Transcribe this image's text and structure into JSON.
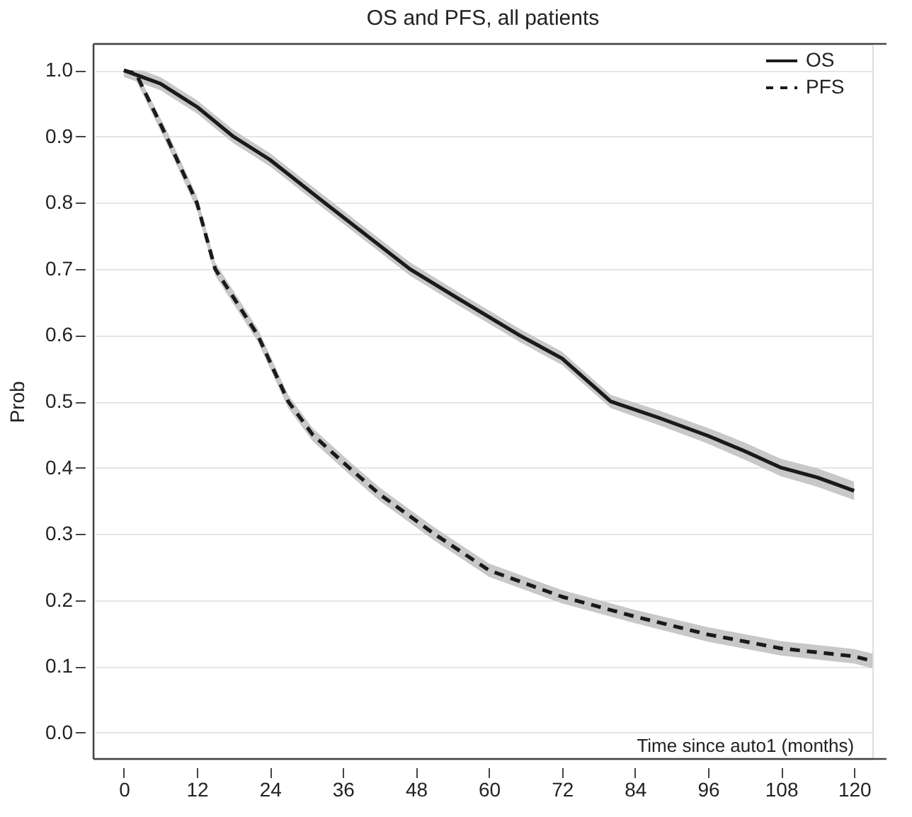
{
  "chart_data": {
    "type": "line",
    "title": "OS and PFS, all patients",
    "xlabel": "Time since auto1 (months)",
    "ylabel": "Prob",
    "xlim": [
      -5,
      123
    ],
    "xticks": [
      0,
      12,
      24,
      36,
      48,
      60,
      72,
      84,
      96,
      108,
      120
    ],
    "ylim": [
      -0.04,
      1.04
    ],
    "yticks": [
      {
        "value": 0,
        "label": "0.0"
      },
      0.1,
      0.2,
      0.3,
      0.4,
      0.5,
      0.6,
      0.7,
      0.8,
      0.9,
      {
        "value": 1,
        "label": "1.0"
      }
    ],
    "grid": "y",
    "legend": "top right",
    "marker": "none",
    "series": [
      {
        "name": "OS",
        "color": "#1a1a1a",
        "line_style": "solid",
        "x": [
          0,
          3,
          6,
          12,
          18,
          24,
          33,
          40,
          47,
          55,
          65,
          72,
          80,
          88,
          96,
          102,
          108,
          114,
          120
        ],
        "values": [
          1.0,
          0.99,
          0.98,
          0.945,
          0.9,
          0.865,
          0.8,
          0.75,
          0.7,
          0.655,
          0.6,
          0.565,
          0.5,
          0.475,
          0.448,
          0.425,
          0.4,
          0.385,
          0.365
        ],
        "lower": [
          0.99,
          0.98,
          0.97,
          0.935,
          0.89,
          0.855,
          0.79,
          0.74,
          0.69,
          0.645,
          0.59,
          0.555,
          0.49,
          0.464,
          0.436,
          0.412,
          0.387,
          0.371,
          0.351
        ],
        "upper": [
          1.0,
          1.0,
          0.99,
          0.955,
          0.91,
          0.875,
          0.81,
          0.76,
          0.71,
          0.665,
          0.61,
          0.575,
          0.51,
          0.486,
          0.46,
          0.438,
          0.413,
          0.399,
          0.379
        ]
      },
      {
        "name": "PFS",
        "color": "#1a1a1a",
        "line_style": "dashed",
        "x": [
          0,
          2,
          7,
          12,
          15,
          22,
          27,
          31,
          37,
          42,
          51,
          60,
          72,
          84,
          96,
          108,
          120,
          123
        ],
        "values": [
          1.0,
          0.995,
          0.9,
          0.8,
          0.7,
          0.6,
          0.5,
          0.45,
          0.4,
          0.36,
          0.3,
          0.245,
          0.205,
          0.175,
          0.148,
          0.127,
          0.115,
          0.108
        ],
        "lower": [
          0.99,
          0.985,
          0.89,
          0.79,
          0.69,
          0.59,
          0.49,
          0.44,
          0.39,
          0.35,
          0.29,
          0.235,
          0.195,
          0.165,
          0.137,
          0.116,
          0.104,
          0.097
        ],
        "upper": [
          1.0,
          1.0,
          0.91,
          0.81,
          0.71,
          0.61,
          0.51,
          0.46,
          0.41,
          0.37,
          0.31,
          0.255,
          0.215,
          0.185,
          0.159,
          0.138,
          0.126,
          0.119
        ]
      }
    ]
  }
}
